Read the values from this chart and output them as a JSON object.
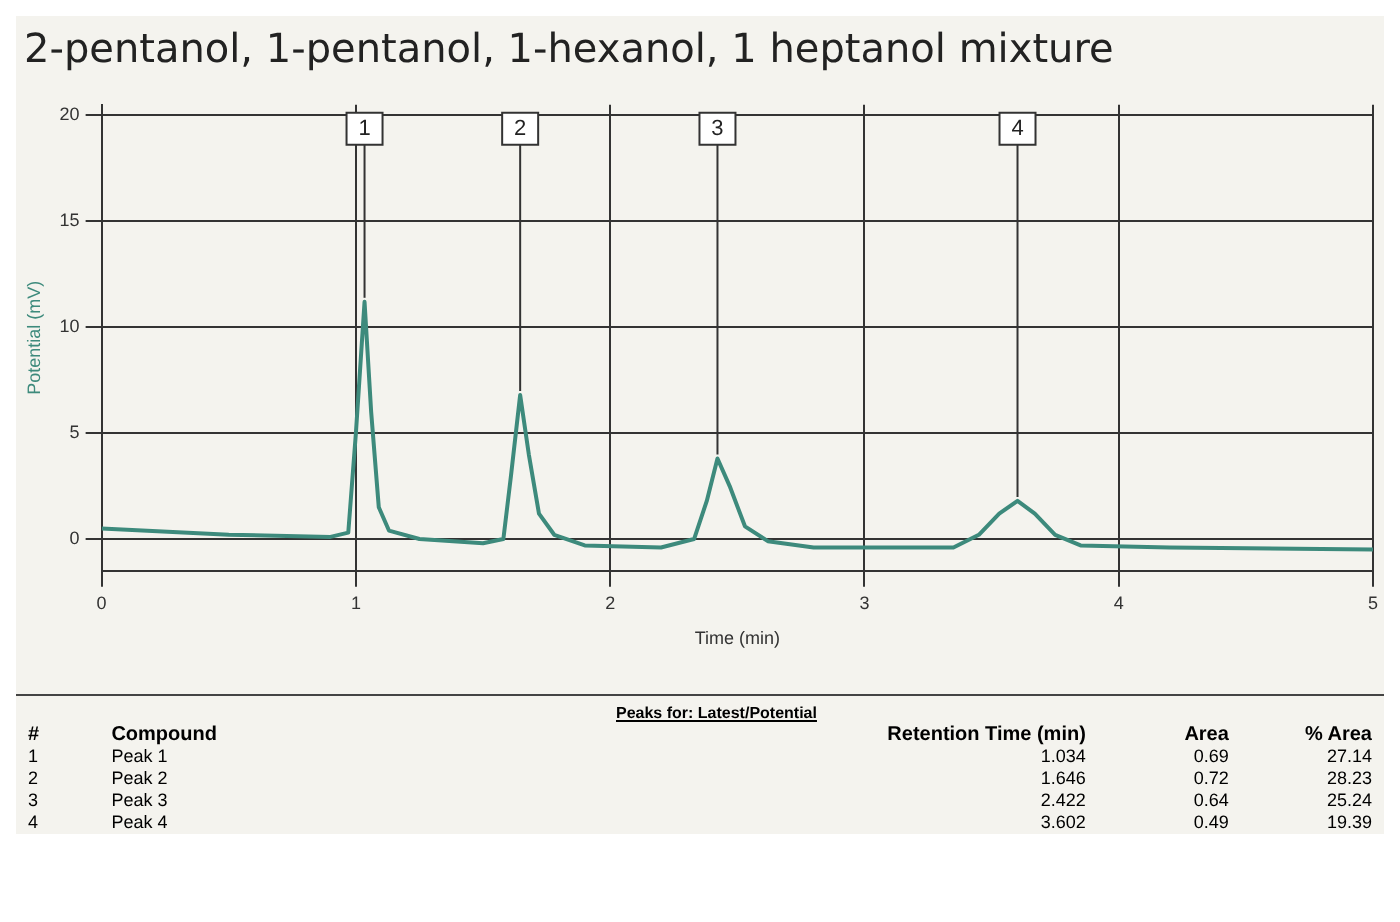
{
  "chart_data": {
    "type": "line",
    "title": "2-pentanol, 1-pentanol, 1-hexanol, 1 heptanol mixture",
    "xlabel": "Time (min)",
    "ylabel": "Potential (mV)",
    "series": [
      {
        "color": "#3d8a7c",
        "x": [
          0,
          0.5,
          0.9,
          0.97,
          1.0,
          1.034,
          1.06,
          1.09,
          1.13,
          1.25,
          1.5,
          1.58,
          1.61,
          1.646,
          1.68,
          1.72,
          1.78,
          1.9,
          2.2,
          2.33,
          2.38,
          2.422,
          2.47,
          2.53,
          2.62,
          2.8,
          3.35,
          3.45,
          3.53,
          3.602,
          3.67,
          3.75,
          3.85,
          4.2,
          5
        ],
        "values": [
          0.5,
          0.2,
          0.1,
          0.3,
          5,
          11.2,
          6,
          1.5,
          0.4,
          0,
          -0.2,
          0,
          3,
          6.8,
          4,
          1.2,
          0.2,
          -0.3,
          -0.4,
          0,
          1.8,
          3.8,
          2.5,
          0.6,
          -0.1,
          -0.4,
          -0.4,
          0.2,
          1.2,
          1.8,
          1.2,
          0.2,
          -0.3,
          -0.4,
          -0.5
        ]
      }
    ],
    "xlim": [
      0,
      5
    ],
    "xticks": [
      0,
      1,
      2,
      3,
      4,
      5
    ],
    "ylim": [
      -1.5,
      20.5
    ],
    "yticks": [
      0,
      5,
      10,
      15,
      20
    ],
    "grid": true,
    "legend": false,
    "marker": "none",
    "line_style": "solid",
    "annotations": [
      {
        "text": "1",
        "x": 1.034,
        "y": 11.2
      },
      {
        "text": "2",
        "x": 1.646,
        "y": 6.8
      },
      {
        "text": "3",
        "x": 2.422,
        "y": 3.8
      },
      {
        "text": "4",
        "x": 3.602,
        "y": 1.8
      },
      "Peaks for: Latest/Potential",
      "#",
      "Compound",
      "Retention Time (min)",
      "Area",
      "% Area",
      "1",
      "Peak 1",
      "1.034",
      "0.69",
      "27.14",
      "2",
      "Peak 2",
      "1.646",
      "0.72",
      "28.23",
      "3",
      "Peak 3",
      "2.422",
      "0.64",
      "25.24",
      "4",
      "Peak 4",
      "3.602",
      "0.49",
      "19.39"
    ]
  }
}
